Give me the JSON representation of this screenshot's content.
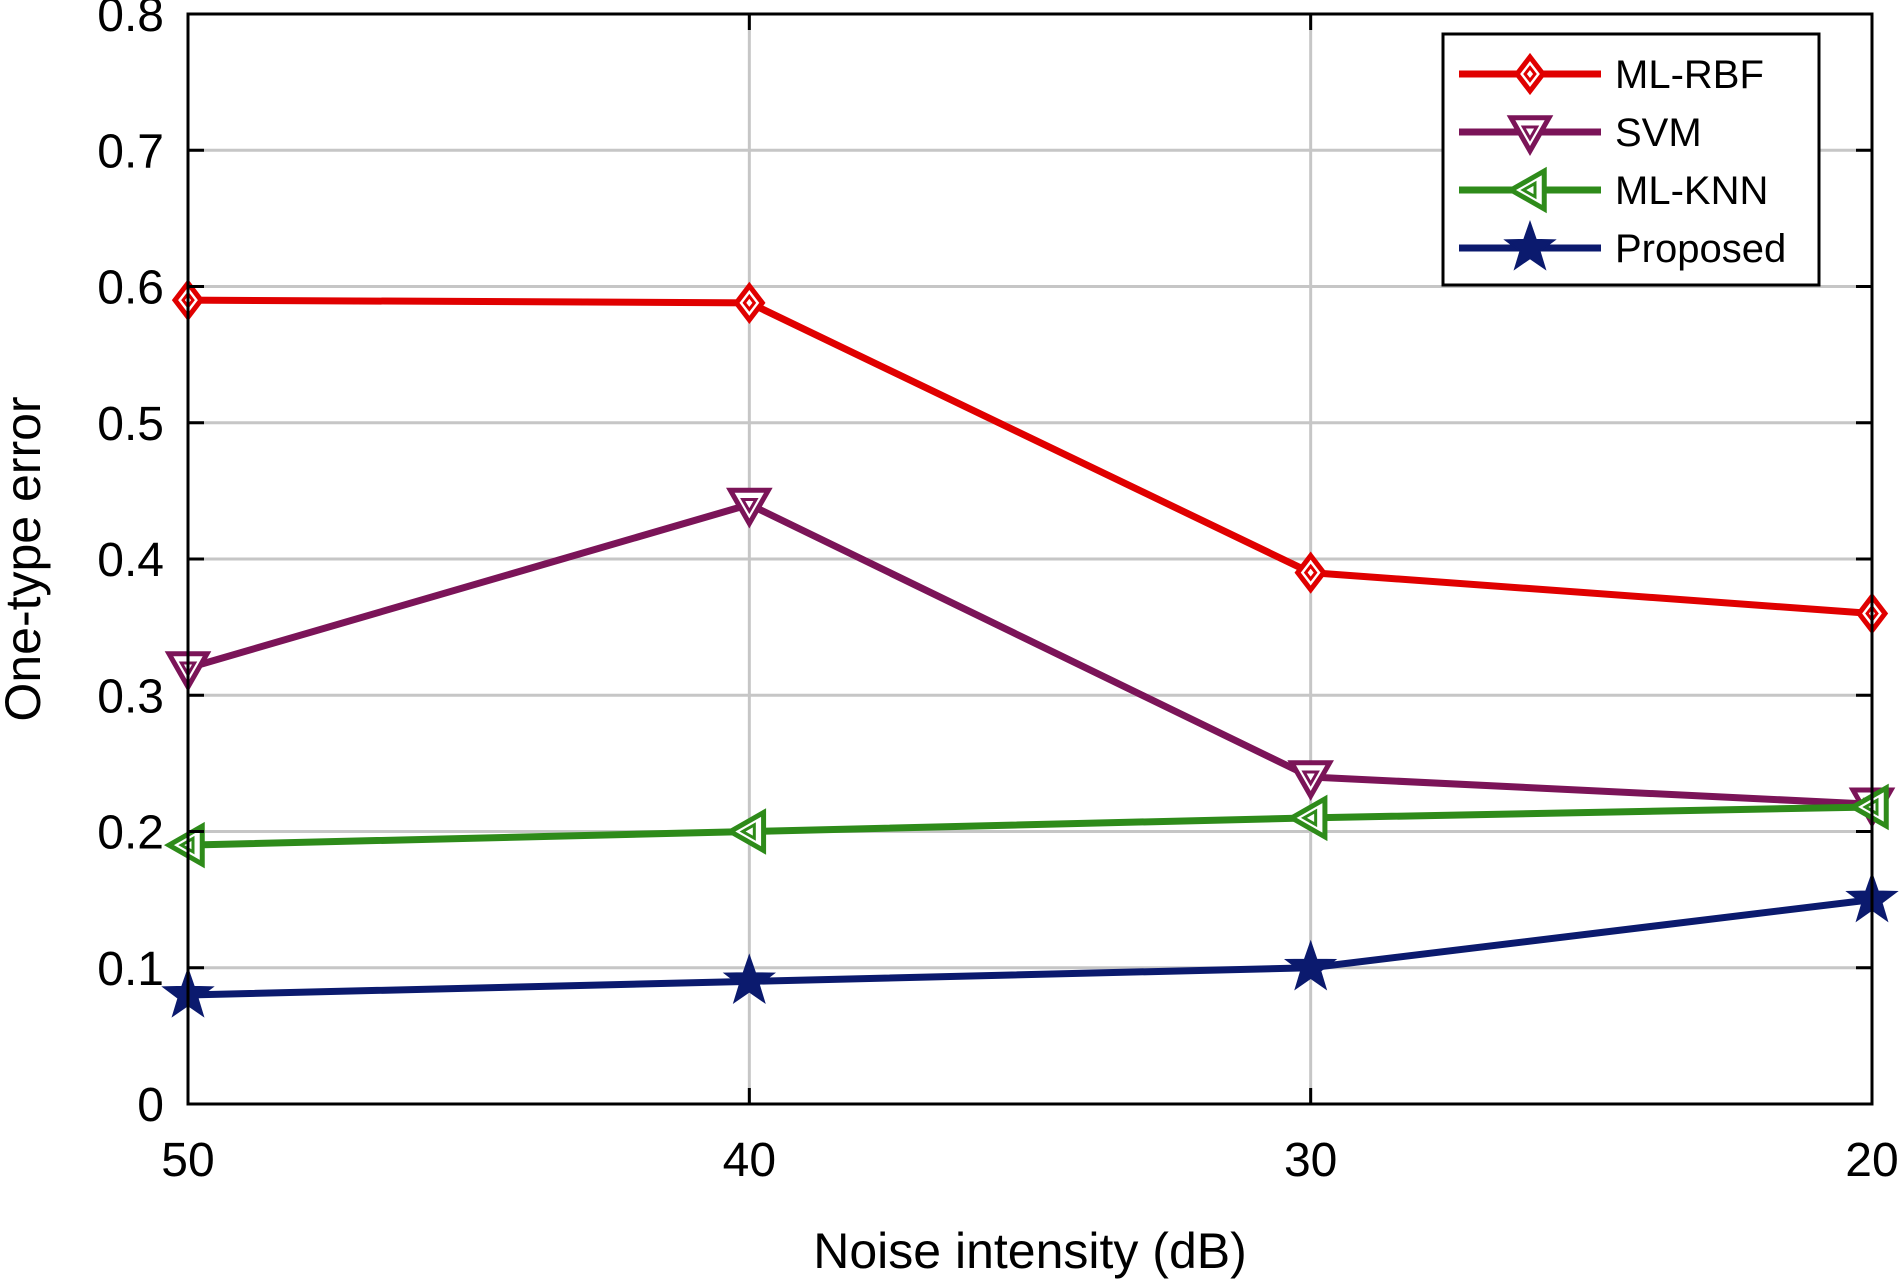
{
  "chart_data": {
    "type": "line",
    "title": "",
    "xlabel": "Noise intensity (dB)",
    "ylabel": "One-type error",
    "categories": [
      "50",
      "40",
      "30",
      "20"
    ],
    "x": [
      50,
      40,
      30,
      20
    ],
    "xlim": [
      50,
      20
    ],
    "ylim": [
      0,
      0.8
    ],
    "yticks": [
      0,
      0.1,
      0.2,
      0.3,
      0.4,
      0.5,
      0.6,
      0.7,
      0.8
    ],
    "ytick_labels": [
      "0",
      "0.1",
      "0.2",
      "0.3",
      "0.4",
      "0.5",
      "0.6",
      "0.7",
      "0.8"
    ],
    "grid": true,
    "legend_position": "top-right",
    "series": [
      {
        "name": "ML-RBF",
        "values": [
          0.59,
          0.588,
          0.39,
          0.36
        ],
        "color": "#e00000",
        "marker": "diamond"
      },
      {
        "name": "SVM",
        "values": [
          0.32,
          0.44,
          0.24,
          0.22
        ],
        "color": "#7b1458",
        "marker": "triangle-down"
      },
      {
        "name": "ML-KNN",
        "values": [
          0.19,
          0.2,
          0.21,
          0.218
        ],
        "color": "#2e8b1a",
        "marker": "triangle-left"
      },
      {
        "name": "Proposed",
        "values": [
          0.08,
          0.09,
          0.1,
          0.15
        ],
        "color": "#0b1a6e",
        "marker": "star"
      }
    ]
  }
}
